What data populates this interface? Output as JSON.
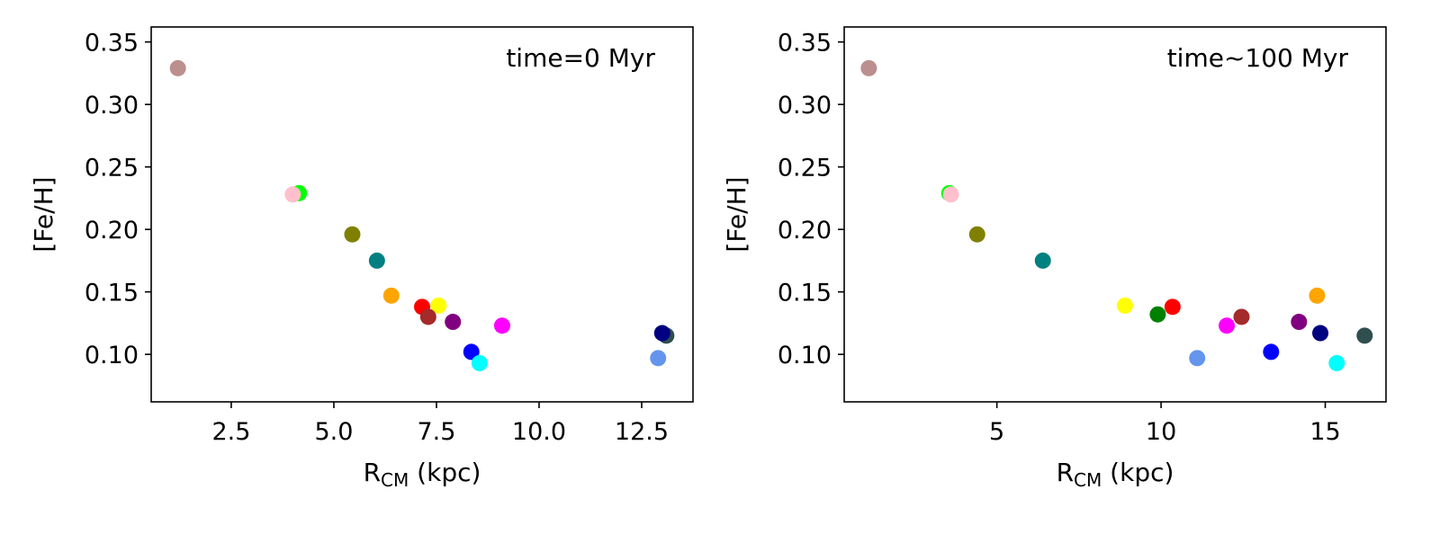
{
  "chart_data": [
    {
      "type": "scatter",
      "title": "",
      "annotation": "time=0 Myr",
      "xlabel": "R",
      "xlabel_sub": "CM",
      "xlabel_suffix": " (kpc)",
      "ylabel": "[Fe/H]",
      "xlim": [
        0.55,
        13.75
      ],
      "ylim": [
        0.062,
        0.362
      ],
      "xticks": [
        2.5,
        5.0,
        7.5,
        10.0,
        12.5
      ],
      "xtick_labels": [
        "2.5",
        "5.0",
        "7.5",
        "10.0",
        "12.5"
      ],
      "yticks": [
        0.1,
        0.15,
        0.2,
        0.25,
        0.3,
        0.35
      ],
      "ytick_labels": [
        "0.10",
        "0.15",
        "0.20",
        "0.25",
        "0.30",
        "0.35"
      ],
      "grid": false,
      "points": [
        {
          "x": 1.2,
          "y": 0.329,
          "color": "#bc8f8f"
        },
        {
          "x": 4.15,
          "y": 0.229,
          "color": "#00ff00"
        },
        {
          "x": 4.0,
          "y": 0.228,
          "color": "#ffc0cb"
        },
        {
          "x": 5.45,
          "y": 0.196,
          "color": "#808000"
        },
        {
          "x": 6.05,
          "y": 0.175,
          "color": "#008080"
        },
        {
          "x": 6.4,
          "y": 0.147,
          "color": "#ffa500"
        },
        {
          "x": 7.15,
          "y": 0.138,
          "color": "#ff0000"
        },
        {
          "x": 7.55,
          "y": 0.139,
          "color": "#ffff00"
        },
        {
          "x": 7.3,
          "y": 0.13,
          "color": "#a52a2a"
        },
        {
          "x": 7.9,
          "y": 0.126,
          "color": "#800080"
        },
        {
          "x": 9.1,
          "y": 0.123,
          "color": "#ff00ff"
        },
        {
          "x": 8.35,
          "y": 0.102,
          "color": "#0000ff"
        },
        {
          "x": 8.55,
          "y": 0.093,
          "color": "#00ffff"
        },
        {
          "x": 12.9,
          "y": 0.097,
          "color": "#6495ed"
        },
        {
          "x": 13.1,
          "y": 0.115,
          "color": "#2f4f4f"
        },
        {
          "x": 13.0,
          "y": 0.117,
          "color": "#000080"
        }
      ]
    },
    {
      "type": "scatter",
      "title": "",
      "annotation": "time~100 Myr",
      "xlabel": "R",
      "xlabel_sub": "CM",
      "xlabel_suffix": " (kpc)",
      "ylabel": "[Fe/H]",
      "xlim": [
        0.35,
        16.85
      ],
      "ylim": [
        0.062,
        0.362
      ],
      "xticks": [
        5,
        10,
        15
      ],
      "xtick_labels": [
        "5",
        "10",
        "15"
      ],
      "yticks": [
        0.1,
        0.15,
        0.2,
        0.25,
        0.3,
        0.35
      ],
      "ytick_labels": [
        "0.10",
        "0.15",
        "0.20",
        "0.25",
        "0.30",
        "0.35"
      ],
      "grid": false,
      "points": [
        {
          "x": 1.1,
          "y": 0.329,
          "color": "#bc8f8f"
        },
        {
          "x": 3.55,
          "y": 0.229,
          "color": "#00ff00"
        },
        {
          "x": 3.6,
          "y": 0.228,
          "color": "#ffc0cb"
        },
        {
          "x": 4.4,
          "y": 0.196,
          "color": "#808000"
        },
        {
          "x": 6.4,
          "y": 0.175,
          "color": "#008080"
        },
        {
          "x": 8.9,
          "y": 0.139,
          "color": "#ffff00"
        },
        {
          "x": 9.9,
          "y": 0.132,
          "color": "#008000"
        },
        {
          "x": 10.35,
          "y": 0.138,
          "color": "#ff0000"
        },
        {
          "x": 11.1,
          "y": 0.097,
          "color": "#6495ed"
        },
        {
          "x": 12.0,
          "y": 0.123,
          "color": "#ff00ff"
        },
        {
          "x": 12.45,
          "y": 0.13,
          "color": "#a52a2a"
        },
        {
          "x": 13.35,
          "y": 0.102,
          "color": "#0000ff"
        },
        {
          "x": 14.2,
          "y": 0.126,
          "color": "#800080"
        },
        {
          "x": 14.75,
          "y": 0.147,
          "color": "#ffa500"
        },
        {
          "x": 14.85,
          "y": 0.117,
          "color": "#000080"
        },
        {
          "x": 15.35,
          "y": 0.093,
          "color": "#00ffff"
        },
        {
          "x": 16.2,
          "y": 0.115,
          "color": "#2f4f4f"
        }
      ]
    }
  ]
}
